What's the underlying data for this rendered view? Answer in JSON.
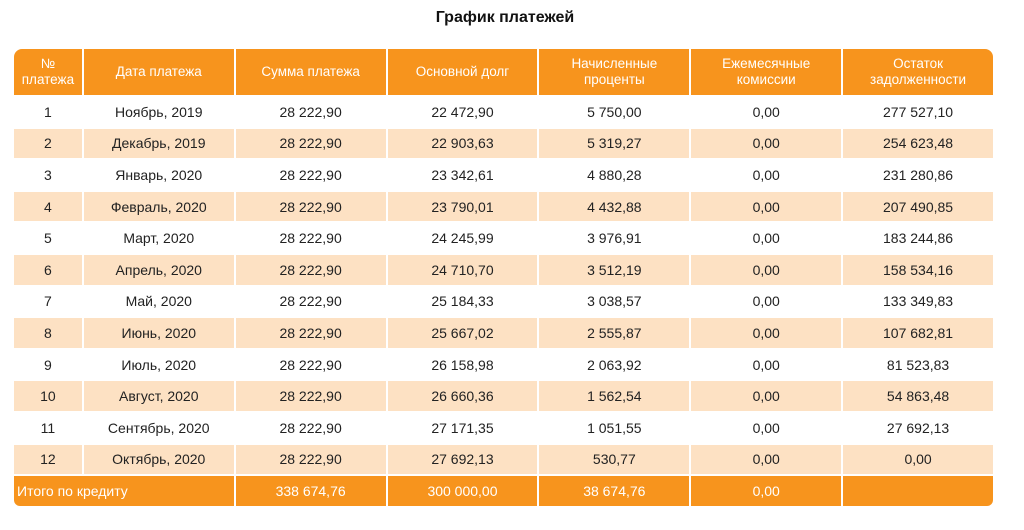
{
  "title": "График платежей",
  "colors": {
    "header_bg": "#f7941d",
    "header_text": "#ffffff",
    "row_alt_bg": "#fde1c3",
    "row_bg": "#ffffff"
  },
  "columns": [
    "№ платежа",
    "Дата платежа",
    "Сумма платежа",
    "Основной долг",
    "Начисленные проценты",
    "Ежемесячные комиссии",
    "Остаток задолженности"
  ],
  "rows": [
    [
      "1",
      "Ноябрь, 2019",
      "28 222,90",
      "22 472,90",
      "5 750,00",
      "0,00",
      "277 527,10"
    ],
    [
      "2",
      "Декабрь, 2019",
      "28 222,90",
      "22 903,63",
      "5 319,27",
      "0,00",
      "254 623,48"
    ],
    [
      "3",
      "Январь, 2020",
      "28 222,90",
      "23 342,61",
      "4 880,28",
      "0,00",
      "231 280,86"
    ],
    [
      "4",
      "Февраль, 2020",
      "28 222,90",
      "23 790,01",
      "4 432,88",
      "0,00",
      "207 490,85"
    ],
    [
      "5",
      "Март, 2020",
      "28 222,90",
      "24 245,99",
      "3 976,91",
      "0,00",
      "183 244,86"
    ],
    [
      "6",
      "Апрель, 2020",
      "28 222,90",
      "24 710,70",
      "3 512,19",
      "0,00",
      "158 534,16"
    ],
    [
      "7",
      "Май, 2020",
      "28 222,90",
      "25 184,33",
      "3 038,57",
      "0,00",
      "133 349,83"
    ],
    [
      "8",
      "Июнь, 2020",
      "28 222,90",
      "25 667,02",
      "2 555,87",
      "0,00",
      "107 682,81"
    ],
    [
      "9",
      "Июль, 2020",
      "28 222,90",
      "26 158,98",
      "2 063,92",
      "0,00",
      "81 523,83"
    ],
    [
      "10",
      "Август, 2020",
      "28 222,90",
      "26 660,36",
      "1 562,54",
      "0,00",
      "54 863,48"
    ],
    [
      "11",
      "Сентябрь, 2020",
      "28 222,90",
      "27 171,35",
      "1 051,55",
      "0,00",
      "27 692,13"
    ],
    [
      "12",
      "Октябрь, 2020",
      "28 222,90",
      "27 692,13",
      "530,77",
      "0,00",
      "0,00"
    ]
  ],
  "totals": {
    "label": "Итого по кредиту",
    "payment_sum": "338 674,76",
    "principal": "300 000,00",
    "interest": "38 674,76",
    "commissions": "0,00",
    "balance": ""
  }
}
